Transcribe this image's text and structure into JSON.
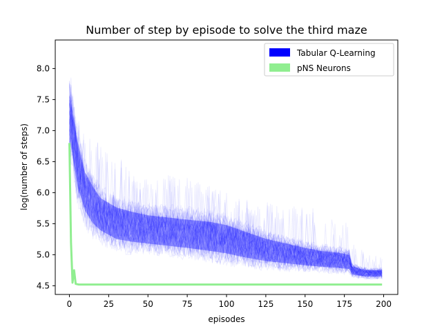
{
  "chart_data": {
    "type": "area",
    "title": "Number of step by episode to solve the third maze",
    "xlabel": "episodes",
    "ylabel": "log(number of steps)",
    "xlim": [
      -9,
      209
    ],
    "ylim": [
      4.36,
      8.46
    ],
    "xticks": [
      0,
      25,
      50,
      75,
      100,
      125,
      150,
      175,
      200
    ],
    "yticks": [
      4.5,
      5.0,
      5.5,
      6.0,
      6.5,
      7.0,
      7.5,
      8.0
    ],
    "ytick_labels": [
      "4.5",
      "5.0",
      "5.5",
      "6.0",
      "6.5",
      "7.0",
      "7.5",
      "8.0"
    ],
    "legend_position": "top-right",
    "grid": false,
    "series": [
      {
        "name": "Tabular Q-Learning",
        "color": "#0000ff",
        "style": "band",
        "x": [
          0,
          2,
          5,
          10,
          15,
          20,
          30,
          40,
          50,
          60,
          75,
          90,
          100,
          110,
          125,
          140,
          150,
          160,
          170,
          178,
          180,
          185,
          190,
          199
        ],
        "upper": [
          7.75,
          7.5,
          7.05,
          6.5,
          6.25,
          6.05,
          5.9,
          5.82,
          5.75,
          5.72,
          5.68,
          5.65,
          5.6,
          5.5,
          5.35,
          5.25,
          5.18,
          5.12,
          5.1,
          5.05,
          4.85,
          4.8,
          4.78,
          4.78
        ],
        "center": [
          7.25,
          7.0,
          6.45,
          6.0,
          5.8,
          5.65,
          5.5,
          5.45,
          5.42,
          5.4,
          5.35,
          5.3,
          5.25,
          5.18,
          5.08,
          5.02,
          4.98,
          4.95,
          4.92,
          4.9,
          4.75,
          4.72,
          4.7,
          4.7
        ],
        "lower": [
          6.65,
          6.4,
          5.95,
          5.55,
          5.35,
          5.25,
          5.12,
          5.08,
          5.05,
          5.02,
          4.98,
          4.93,
          4.9,
          4.85,
          4.8,
          4.77,
          4.75,
          4.73,
          4.72,
          4.7,
          4.65,
          4.63,
          4.62,
          4.62
        ],
        "max_excursion": [
          8.3,
          7.6,
          7.2,
          7.0,
          6.9,
          6.8,
          6.6,
          6.4,
          6.2,
          6.3,
          6.3,
          6.1,
          6.0,
          5.9,
          5.85,
          5.8,
          5.8,
          5.7,
          5.6,
          5.5,
          5.2,
          5.1,
          5.0,
          5.0
        ]
      },
      {
        "name": "pNS Neurons",
        "color": "#90ee90",
        "style": "line",
        "x": [
          0,
          1,
          2,
          3,
          4,
          6,
          199
        ],
        "y": [
          6.8,
          5.2,
          4.55,
          4.75,
          4.53,
          4.52,
          4.52
        ]
      }
    ]
  }
}
